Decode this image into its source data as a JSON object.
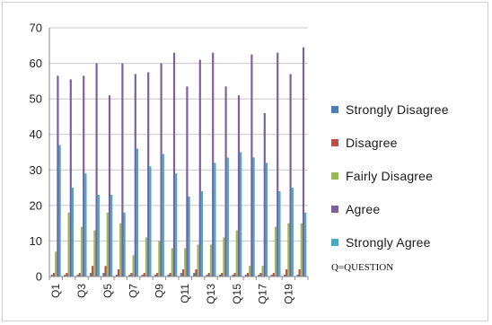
{
  "chart_data": {
    "type": "bar",
    "title": "",
    "xlabel": "",
    "ylabel": "",
    "ylim": [
      0,
      70
    ],
    "yticks": [
      0,
      10,
      20,
      30,
      40,
      50,
      60,
      70
    ],
    "grid": "horizontal",
    "legend_position": "right",
    "categories": [
      "Q1",
      "Q2",
      "Q3",
      "Q4",
      "Q5",
      "Q6",
      "Q7",
      "Q8",
      "Q9",
      "Q10",
      "Q11",
      "Q12",
      "Q13",
      "Q14",
      "Q15",
      "Q16",
      "Q17",
      "Q18",
      "Q19",
      "Q20"
    ],
    "category_tick_labels": [
      "Q1",
      "",
      "Q3",
      "",
      "Q5",
      "",
      "Q7",
      "",
      "Q9",
      "",
      "Q11",
      "",
      "Q13",
      "",
      "Q15",
      "",
      "Q17",
      "",
      "Q19",
      ""
    ],
    "series": [
      {
        "name": "Strongly Disagree",
        "color": "#4a7ebb",
        "values": [
          0.5,
          0.5,
          0.5,
          1,
          1,
          0.5,
          0.5,
          0.5,
          0.5,
          0.5,
          1,
          1,
          0.5,
          0.5,
          0.5,
          0.5,
          0.5,
          0.5,
          0.5,
          0.5
        ]
      },
      {
        "name": "Disagree",
        "color": "#be4b48",
        "values": [
          1,
          1,
          1,
          3,
          3,
          2,
          1,
          1,
          1,
          1,
          2,
          2,
          1,
          1,
          1,
          1,
          1,
          1,
          2,
          2
        ]
      },
      {
        "name": "Fairly Disagree",
        "color": "#98b954",
        "values": [
          7,
          18,
          14,
          13,
          18,
          15,
          6,
          11,
          10,
          8,
          8,
          9,
          9,
          11,
          13,
          3,
          3,
          14,
          15,
          15
        ]
      },
      {
        "name": "Agree",
        "color": "#7d60a0",
        "values": [
          56.5,
          55.5,
          56.5,
          60,
          51,
          60,
          57,
          57.5,
          60,
          63,
          53.5,
          61,
          63,
          53.5,
          51,
          62.5,
          46,
          63,
          57,
          64.5
        ]
      },
      {
        "name": "Strongly Agree",
        "color": "#46aac5",
        "values": [
          37,
          25,
          29,
          23,
          23,
          18,
          36,
          31,
          34.5,
          29,
          22.5,
          24,
          32,
          33.5,
          35,
          33.5,
          32,
          24,
          25,
          18
        ]
      }
    ]
  },
  "note": "Q=QUESTION"
}
